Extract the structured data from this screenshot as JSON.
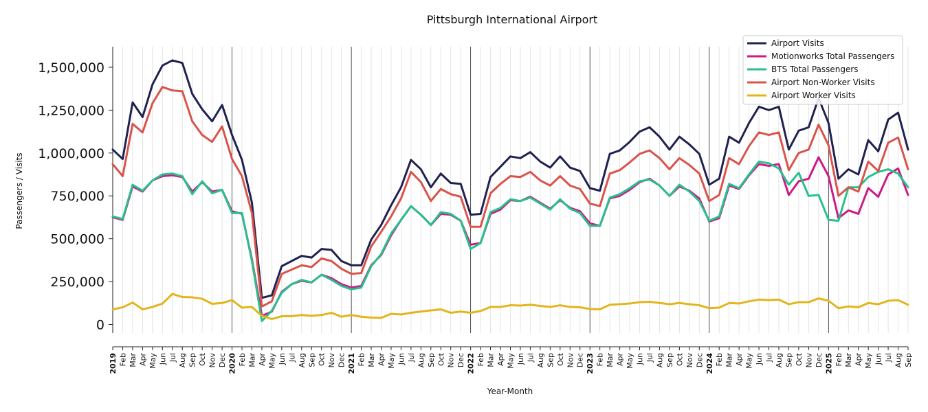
{
  "chart_data": {
    "type": "line",
    "title": "Pittsburgh International Airport",
    "xlabel": "Year-Month",
    "ylabel": "Passengers / Visits",
    "ylim": [
      -50000,
      1620000
    ],
    "yticks": [
      0,
      250000,
      500000,
      750000,
      1000000,
      1250000,
      1500000
    ],
    "ytick_labels": [
      "0",
      "250,000",
      "500,000",
      "750,000",
      "1,000,000",
      "1,250,000",
      "1,500,000"
    ],
    "x_ticks": [
      "2019",
      "Feb",
      "Mar",
      "Apr",
      "May",
      "Jun",
      "Jul",
      "Aug",
      "Sep",
      "Oct",
      "Nov",
      "Dec",
      "2020",
      "Feb",
      "Mar",
      "Apr",
      "May",
      "Jun",
      "Jul",
      "Aug",
      "Sep",
      "Oct",
      "Nov",
      "Dec",
      "2021",
      "Feb",
      "Mar",
      "Apr",
      "May",
      "Jun",
      "Jul",
      "Aug",
      "Sep",
      "Oct",
      "Nov",
      "Dec",
      "2022",
      "Feb",
      "Mar",
      "Apr",
      "May",
      "Jun",
      "Jul",
      "Aug",
      "Sep",
      "Oct",
      "Nov",
      "Dec",
      "2023",
      "Feb",
      "Mar",
      "Apr",
      "May",
      "Jun",
      "Jul",
      "Aug",
      "Sep",
      "Oct",
      "Nov",
      "Dec",
      "2024",
      "Feb",
      "Mar",
      "Apr",
      "May",
      "Jun",
      "Jul",
      "Aug",
      "Sep",
      "Oct",
      "Nov",
      "Dec",
      "2025",
      "Feb",
      "Mar",
      "Apr",
      "May",
      "Jun",
      "Jul",
      "Aug",
      "Sep"
    ],
    "grid": "vertical, monthly",
    "legend_position": "top-right",
    "series": [
      {
        "name": "Airport Visits",
        "color": "#1f2150",
        "values": [
          1020000,
          965000,
          1295000,
          1210000,
          1400000,
          1510000,
          1540000,
          1525000,
          1345000,
          1255000,
          1185000,
          1280000,
          1105000,
          960000,
          710000,
          155000,
          170000,
          340000,
          370000,
          400000,
          390000,
          440000,
          435000,
          370000,
          345000,
          345000,
          495000,
          580000,
          695000,
          800000,
          960000,
          905000,
          800000,
          880000,
          825000,
          820000,
          640000,
          645000,
          860000,
          920000,
          980000,
          970000,
          1005000,
          950000,
          915000,
          980000,
          915000,
          895000,
          795000,
          780000,
          995000,
          1015000,
          1065000,
          1125000,
          1150000,
          1095000,
          1020000,
          1095000,
          1050000,
          995000,
          815000,
          850000,
          1095000,
          1060000,
          1175000,
          1270000,
          1250000,
          1270000,
          1020000,
          1130000,
          1150000,
          1320000,
          1175000,
          850000,
          905000,
          875000,
          1075000,
          1010000,
          1195000,
          1235000,
          1020000
        ]
      },
      {
        "name": "Motionworks Total Passengers",
        "color": "#cc1a87",
        "values": [
          625000,
          610000,
          805000,
          775000,
          840000,
          865000,
          870000,
          860000,
          775000,
          830000,
          775000,
          785000,
          660000,
          645000,
          380000,
          50000,
          75000,
          190000,
          235000,
          255000,
          245000,
          290000,
          270000,
          235000,
          215000,
          225000,
          345000,
          405000,
          520000,
          610000,
          690000,
          640000,
          580000,
          645000,
          640000,
          605000,
          465000,
          475000,
          645000,
          670000,
          725000,
          720000,
          745000,
          710000,
          675000,
          725000,
          680000,
          660000,
          590000,
          575000,
          735000,
          750000,
          785000,
          830000,
          850000,
          810000,
          750000,
          805000,
          780000,
          735000,
          600000,
          620000,
          810000,
          790000,
          870000,
          935000,
          925000,
          935000,
          755000,
          835000,
          850000,
          975000,
          865000,
          620000,
          665000,
          645000,
          795000,
          745000,
          875000,
          910000,
          755000
        ]
      },
      {
        "name": "BTS Total Passengers",
        "color": "#27c08c",
        "values": [
          630000,
          615000,
          815000,
          780000,
          840000,
          875000,
          880000,
          865000,
          760000,
          835000,
          765000,
          785000,
          650000,
          650000,
          370000,
          20000,
          80000,
          185000,
          235000,
          260000,
          245000,
          290000,
          260000,
          225000,
          205000,
          215000,
          340000,
          410000,
          530000,
          610000,
          690000,
          640000,
          580000,
          655000,
          645000,
          605000,
          440000,
          475000,
          655000,
          680000,
          730000,
          720000,
          740000,
          705000,
          670000,
          730000,
          675000,
          650000,
          575000,
          575000,
          740000,
          760000,
          795000,
          835000,
          845000,
          810000,
          750000,
          815000,
          775000,
          720000,
          605000,
          630000,
          820000,
          795000,
          875000,
          950000,
          940000,
          910000,
          815000,
          885000,
          750000,
          755000,
          610000,
          605000,
          800000,
          800000,
          860000,
          890000,
          905000,
          880000,
          800000
        ]
      },
      {
        "name": "Airport Non-Worker Visits",
        "color": "#d9534a",
        "values": [
          935000,
          865000,
          1170000,
          1120000,
          1290000,
          1385000,
          1365000,
          1360000,
          1185000,
          1105000,
          1065000,
          1155000,
          965000,
          865000,
          650000,
          105000,
          135000,
          295000,
          320000,
          345000,
          335000,
          385000,
          370000,
          325000,
          295000,
          300000,
          455000,
          540000,
          630000,
          735000,
          890000,
          830000,
          720000,
          790000,
          760000,
          745000,
          570000,
          570000,
          765000,
          820000,
          865000,
          860000,
          890000,
          840000,
          810000,
          865000,
          810000,
          790000,
          705000,
          690000,
          880000,
          900000,
          945000,
          995000,
          1015000,
          970000,
          905000,
          970000,
          930000,
          880000,
          720000,
          755000,
          970000,
          935000,
          1040000,
          1120000,
          1105000,
          1120000,
          900000,
          1000000,
          1020000,
          1165000,
          1045000,
          750000,
          800000,
          775000,
          950000,
          895000,
          1060000,
          1090000,
          905000
        ]
      },
      {
        "name": "Airport Worker Visits",
        "color": "#e3b51b",
        "values": [
          88000,
          100000,
          128000,
          88000,
          102000,
          122000,
          178000,
          160000,
          158000,
          150000,
          120000,
          125000,
          142000,
          98000,
          102000,
          50000,
          32000,
          48000,
          48000,
          55000,
          50000,
          55000,
          68000,
          45000,
          55000,
          45000,
          40000,
          38000,
          62000,
          58000,
          68000,
          75000,
          82000,
          88000,
          68000,
          75000,
          68000,
          78000,
          102000,
          102000,
          112000,
          110000,
          115000,
          108000,
          102000,
          112000,
          102000,
          100000,
          90000,
          88000,
          115000,
          118000,
          122000,
          130000,
          132000,
          125000,
          118000,
          125000,
          118000,
          112000,
          95000,
          98000,
          125000,
          122000,
          135000,
          145000,
          142000,
          145000,
          118000,
          130000,
          130000,
          152000,
          138000,
          95000,
          105000,
          100000,
          125000,
          118000,
          138000,
          142000,
          115000
        ]
      }
    ]
  }
}
